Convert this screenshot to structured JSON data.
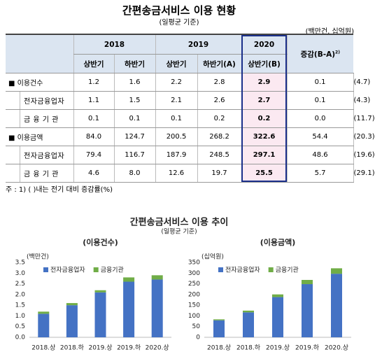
{
  "title": "간편송금서비스 이용 현황",
  "subtitle": "(일평균 기준)",
  "table": {
    "unit": "(백만건, 십억원)",
    "years": [
      "2018",
      "2019",
      "2020"
    ],
    "change_header": "증감(B-A)",
    "change_note": "2)",
    "subheaders": [
      "상반기",
      "하반기",
      "상반기",
      "하반기(A)",
      "상반기(B)"
    ],
    "rows": [
      {
        "label": "■ 이용건수",
        "cells": [
          "1.2",
          "1.6",
          "2.2",
          "2.8",
          "2.9",
          "0.1",
          "(4.7)"
        ]
      },
      {
        "label": "전자금융업자",
        "cells": [
          "1.1",
          "1.5",
          "2.1",
          "2.6",
          "2.7",
          "0.1",
          "(4.3)"
        ]
      },
      {
        "label": "금 융 기 관",
        "cells": [
          "0.1",
          "0.1",
          "0.1",
          "0.2",
          "0.2",
          "0.0",
          "(11.7)"
        ]
      },
      {
        "label": "■ 이용금액",
        "cells": [
          "84.0",
          "124.7",
          "200.5",
          "268.2",
          "322.6",
          "54.4",
          "(20.3)"
        ]
      },
      {
        "label": "전자금융업자",
        "cells": [
          "79.4",
          "116.7",
          "187.9",
          "248.5",
          "297.1",
          "48.6",
          "(19.6)"
        ]
      },
      {
        "label": "금 융 기 관",
        "cells": [
          "4.6",
          "8.0",
          "12.6",
          "19.7",
          "25.5",
          "5.7",
          "(29.1)"
        ]
      }
    ],
    "note": "주 : 1) ( )내는 전기 대비 증감률(%)"
  },
  "charts_title": "간편송금서비스 이용 추이",
  "charts_subtitle": "(일평균 기준)",
  "chart_data": [
    {
      "type": "stacked_bar",
      "title": "(이용건수)",
      "y_label": "(백만건)",
      "categories": [
        "2018.상",
        "2018.하",
        "2019.상",
        "2019.하",
        "2020.상"
      ],
      "series": [
        {
          "name": "전자금융업자",
          "color": "#4472c4",
          "values": [
            1.1,
            1.5,
            2.1,
            2.6,
            2.7
          ]
        },
        {
          "name": "금융기관",
          "color": "#70ad47",
          "values": [
            0.1,
            0.1,
            0.1,
            0.2,
            0.2
          ]
        }
      ],
      "ylim": [
        0,
        3.5
      ],
      "yticks": [
        {
          "value": 0,
          "label": "0.0"
        },
        {
          "value": 0.5,
          "label": "0.5"
        },
        {
          "value": 1,
          "label": "1.0"
        },
        {
          "value": 1.5,
          "label": "1.5"
        },
        {
          "value": 2,
          "label": "2.0"
        },
        {
          "value": 2.5,
          "label": "2.5"
        },
        {
          "value": 3,
          "label": "3.0"
        },
        {
          "value": 3.5,
          "label": "3.5"
        }
      ],
      "grid": false
    },
    {
      "type": "stacked_bar",
      "title": "(이용금액)",
      "y_label": "(십억원)",
      "categories": [
        "2018.상",
        "2018.하",
        "2019.상",
        "2019.하",
        "2020.상"
      ],
      "series": [
        {
          "name": "전자금융업자",
          "color": "#4472c4",
          "values": [
            79.4,
            116.7,
            187.9,
            248.5,
            297.1
          ]
        },
        {
          "name": "금융기관",
          "color": "#70ad47",
          "values": [
            4.6,
            8.0,
            12.6,
            19.7,
            25.5
          ]
        }
      ],
      "ylim": [
        0,
        350
      ],
      "yticks": [
        0,
        50,
        100,
        150,
        200,
        250,
        300,
        350
      ],
      "grid": false
    }
  ]
}
